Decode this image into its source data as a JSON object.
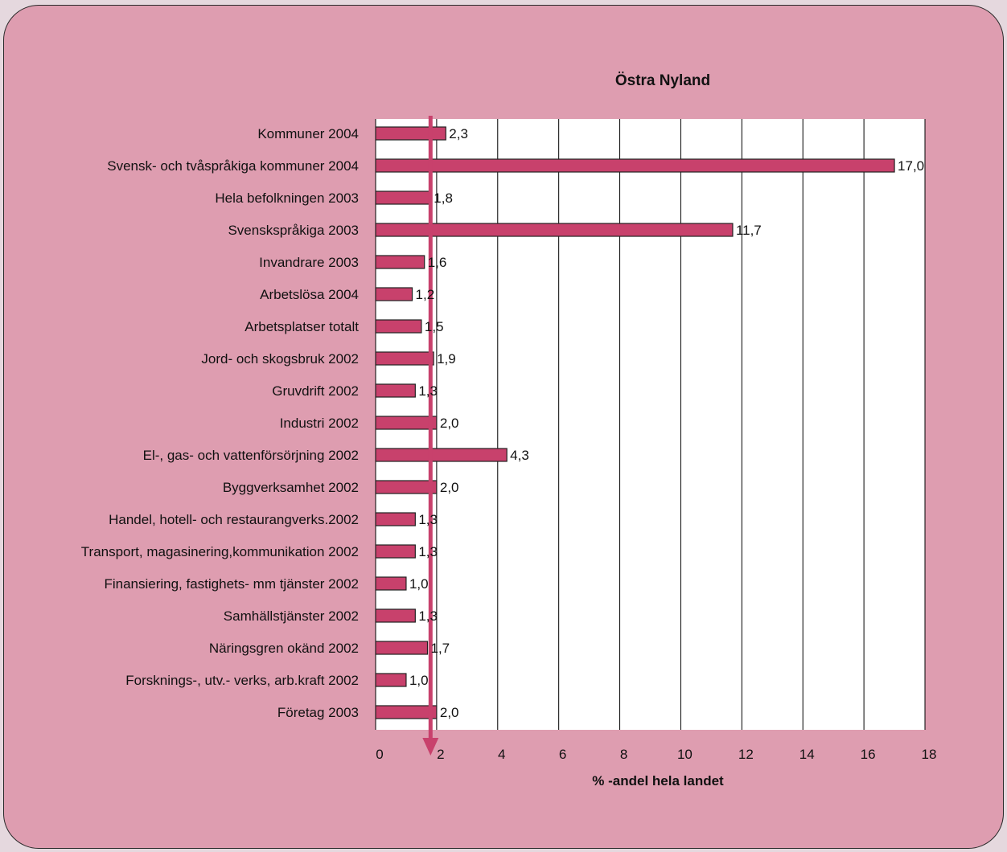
{
  "chart_data": {
    "type": "bar",
    "orientation": "horizontal",
    "title": "Östra Nyland",
    "xlabel": "% -andel hela landet",
    "ylabel": "",
    "xlim": [
      0,
      18
    ],
    "xticks": [
      "0",
      "2",
      "4",
      "6",
      "8",
      "10",
      "12",
      "14",
      "16",
      "18"
    ],
    "grid": "vertical",
    "bar_color": "#c8416c",
    "reference_marker": {
      "value": 1.8,
      "color": "#c8416c"
    },
    "categories": [
      "Kommuner 2004",
      "Svensk- och tvåspråkiga kommuner 2004",
      "Hela befolkningen 2003",
      "Svenskspråkiga 2003",
      "Invandrare 2003",
      "Arbetslösa 2004",
      "Arbetsplatser totalt",
      "Jord- och skogsbruk 2002",
      "Gruvdrift 2002",
      "Industri 2002",
      "El-, gas- och vattenförsörjning 2002",
      "Byggverksamhet 2002",
      "Handel, hotell- och restaurangverks.2002",
      "Transport, magasinering,kommunikation 2002",
      "Finansiering, fastighets- mm tjänster 2002",
      "Samhällstjänster 2002",
      "Näringsgren okänd 2002",
      "Forsknings-, utv.- verks, arb.kraft 2002",
      "Företag 2003"
    ],
    "values": [
      2.3,
      17.0,
      1.8,
      11.7,
      1.6,
      1.2,
      1.5,
      1.9,
      1.3,
      2.0,
      4.3,
      2.0,
      1.3,
      1.3,
      1.0,
      1.3,
      1.7,
      1.0,
      2.0
    ],
    "value_labels": [
      "2,3",
      "17,0",
      "1,8",
      "11,7",
      "1,6",
      "1,2",
      "1,5",
      "1,9",
      "1,3",
      "2,0",
      "4,3",
      "2,0",
      "1,3",
      "1,3",
      "1,0",
      "1,3",
      "1,7",
      "1,0",
      "2,0"
    ]
  }
}
